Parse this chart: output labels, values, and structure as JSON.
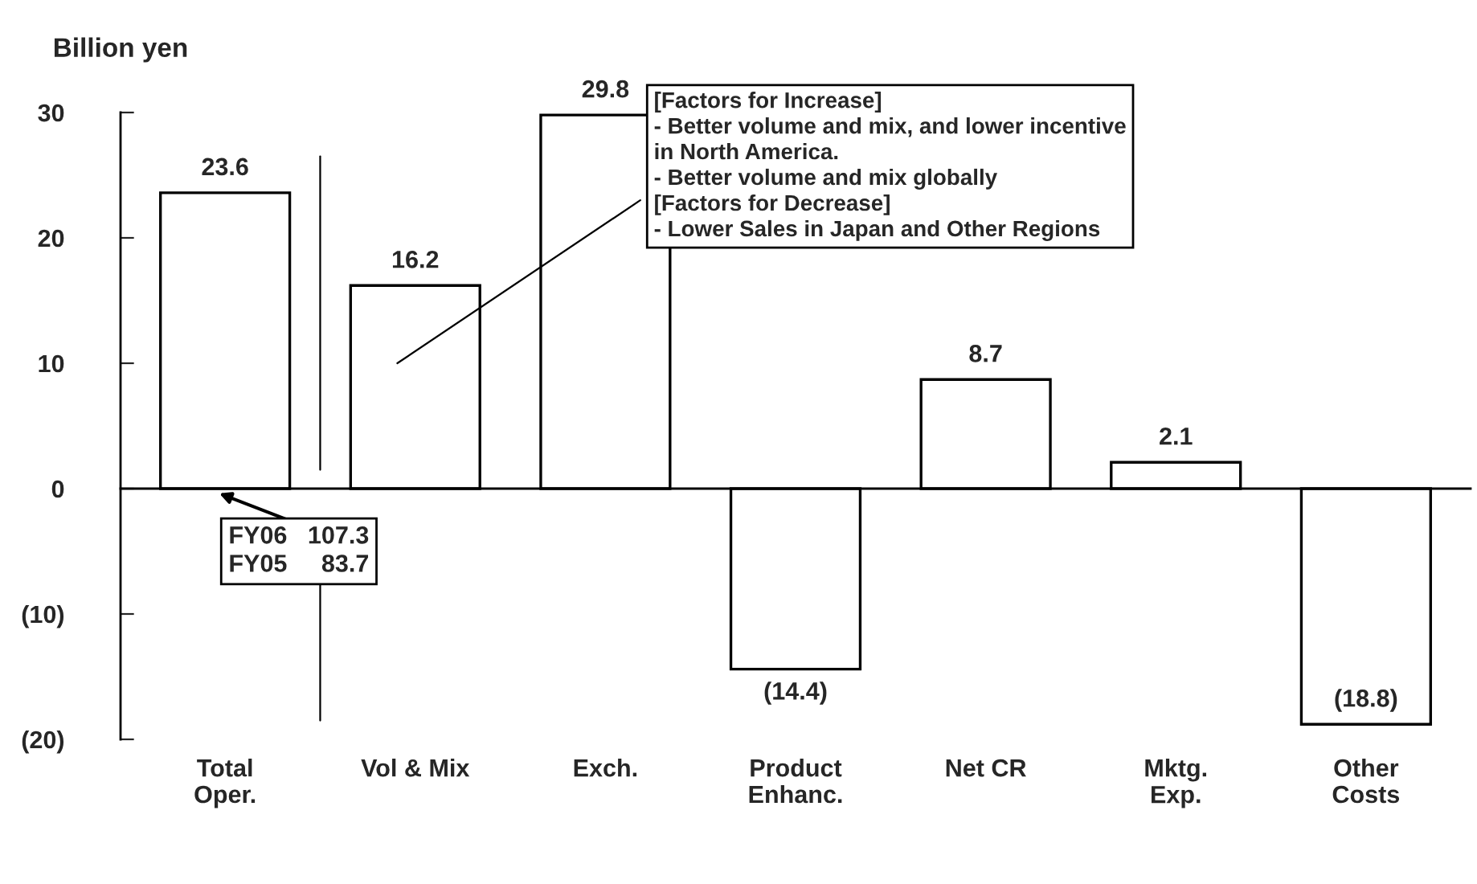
{
  "chart_data": {
    "type": "bar",
    "ylabel": "Billion yen",
    "categories": [
      "Total\nOper.",
      "Vol & Mix",
      "Exch.",
      "Product\nEnhanc.",
      "Net CR",
      "Mktg.\nExp.",
      "Other\nCosts"
    ],
    "values": [
      23.6,
      16.2,
      29.8,
      -14.4,
      8.7,
      2.1,
      -18.8
    ],
    "value_labels": [
      "23.6",
      "16.2",
      "29.8",
      "(14.4)",
      "8.7",
      "2.1",
      "(18.8)"
    ],
    "color": "#ffffff",
    "ylim": [
      -20,
      30
    ],
    "yticks": [
      {
        "value": -20,
        "label": "(20)"
      },
      {
        "value": -10,
        "label": "(10)"
      },
      0,
      10,
      20,
      30
    ],
    "grid": false,
    "annotations": [
      "FY06   107.3\nFY05     83.7",
      "[Factors for Increase]\n- Better volume and mix, and lower incentive\nin North America.\n- Better volume and mix globally\n[Factors for Decrease]\n- Lower Sales in Japan and Other Regions"
    ]
  }
}
